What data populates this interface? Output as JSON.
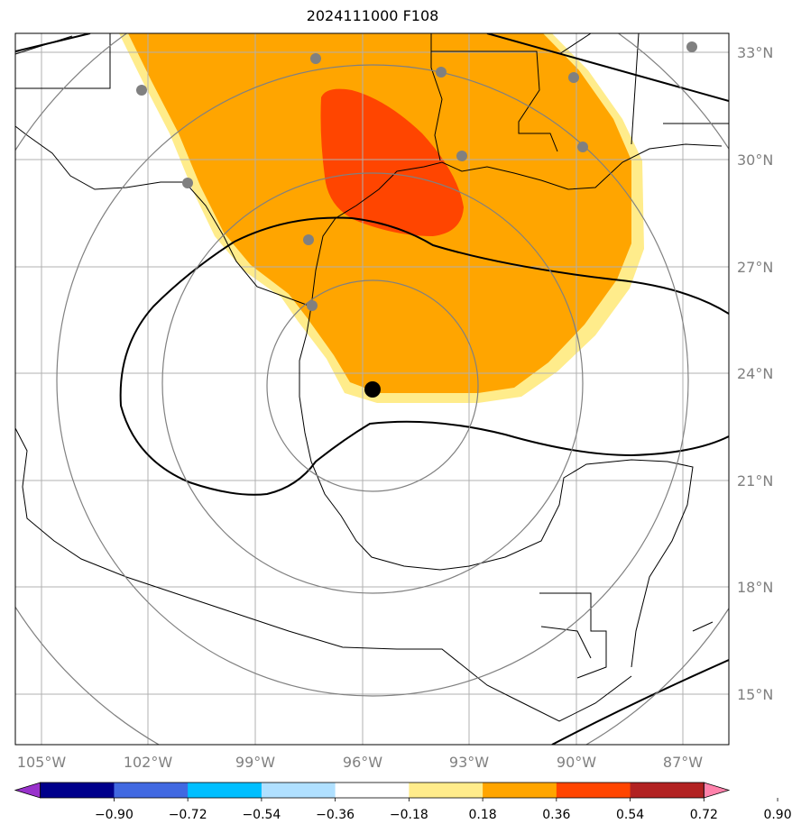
{
  "title": "2024111000 F108",
  "map": {
    "lon_ticks": [
      "105°W",
      "102°W",
      "99°W",
      "96°W",
      "93°W",
      "90°W",
      "87°W"
    ],
    "lat_ticks": [
      "33°N",
      "30°N",
      "27°N",
      "24°N",
      "21°N",
      "18°N",
      "15°N"
    ],
    "tick_label_color": "#808080",
    "grid_color": "#b0b0b0",
    "range_ring_color": "#808080",
    "land_outline_color": "#000000",
    "storm_center_marker": "black-dot",
    "city_marker_color": "#808080"
  },
  "colorbar": {
    "ticks": [
      "−0.90",
      "−0.72",
      "−0.54",
      "−0.36",
      "−0.18",
      "0.18",
      "0.36",
      "0.54",
      "0.72",
      "0.90"
    ],
    "colors": [
      "#9932cc",
      "#00008b",
      "#4169e1",
      "#00bfff",
      "#b0e0ff",
      "#ffffff",
      "#ffec8b",
      "#ffa500",
      "#ff4500",
      "#b22222",
      "#ff82ab"
    ]
  },
  "field_colors": {
    "band_018_036": "#ffec8b",
    "band_036_054": "#ffa500",
    "band_054_072": "#ff4500"
  }
}
